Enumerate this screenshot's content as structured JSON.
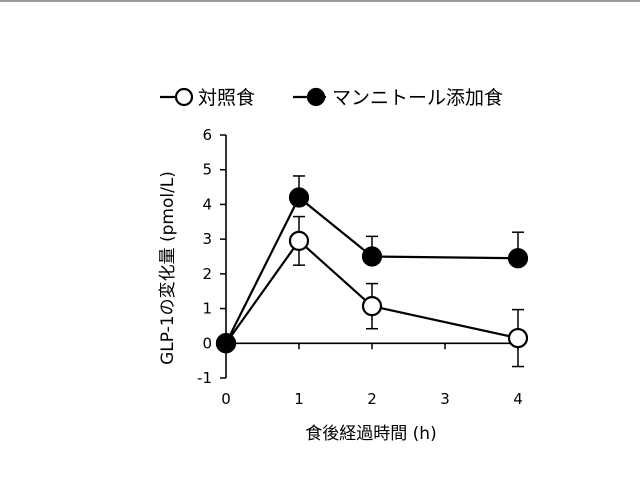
{
  "chart_data": {
    "type": "line",
    "title": "",
    "xlabel": "食後経過時間 (h)",
    "ylabel": "GLP-1の変化量 (pmol/L)",
    "xlim": [
      0,
      4
    ],
    "ylim": [
      -1,
      6
    ],
    "x_ticks": [
      0,
      1,
      2,
      3,
      4
    ],
    "y_ticks": [
      -1,
      0,
      1,
      2,
      3,
      4,
      5,
      6
    ],
    "grid": false,
    "legend_position": "top",
    "series": [
      {
        "name": "対照食",
        "marker": "open-circle",
        "x": [
          0,
          1,
          2,
          4
        ],
        "y": [
          0,
          2.95,
          1.07,
          0.15
        ],
        "error": [
          0,
          0.7,
          0.65,
          0.82
        ]
      },
      {
        "name": "マンニトール添加食",
        "marker": "filled-circle",
        "x": [
          0,
          1,
          2,
          4
        ],
        "y": [
          0,
          4.2,
          2.5,
          2.45
        ],
        "error": [
          0,
          0.62,
          0.58,
          0.75
        ]
      }
    ]
  }
}
